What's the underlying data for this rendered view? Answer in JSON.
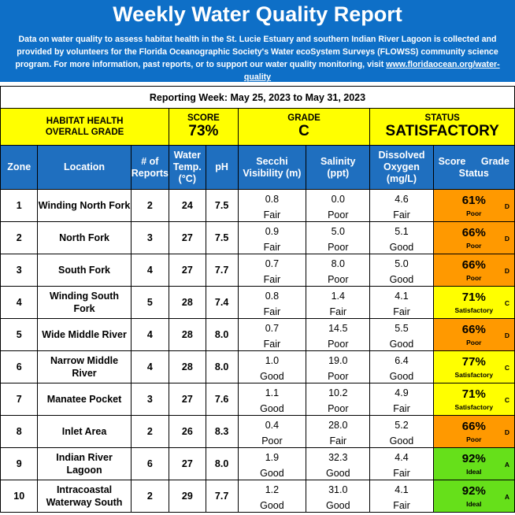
{
  "banner": {
    "title": "Weekly Water Quality Report",
    "description": "Data on water quality to assess habitat health in the St. Lucie Estuary and southern Indian River Lagoon is collected and provided by volunteers for the Florida Oceanographic Society's Water ecoSystem Surveys (FLOWSS) community science program.  For more information, past reports, or to support our water quality monitoring, visit ",
    "link_text": "www.floridaocean.org/water-quality",
    "link_end": ""
  },
  "reporting_week": "Reporting Week: May 25, 2023 to May 31, 2023",
  "summary": {
    "habitat_label_1": "HABITAT HEALTH",
    "habitat_label_2": "OVERALL GRADE",
    "score_label": "SCORE",
    "score_value": "73%",
    "grade_label": "GRADE",
    "grade_value": "C",
    "status_label": "STATUS",
    "status_value": "SATISFACTORY"
  },
  "columns": {
    "zone": "Zone",
    "location": "Location",
    "reports_1": "# of",
    "reports_2": "Reports",
    "temp_1": "Water",
    "temp_2": "Temp.",
    "temp_3": "(°C)",
    "ph": "pH",
    "secchi_1": "Secchi",
    "secchi_2": "Visibility (m)",
    "salinity_1": "Salinity",
    "salinity_2": "(ppt)",
    "do_1": "Dissolved",
    "do_2": "Oxygen",
    "do_3": "(mg/L)",
    "score": "Score",
    "grade": "Grade",
    "status": "Status"
  },
  "colors": {
    "banner": "#0e6fc7",
    "header": "#1f6fbf",
    "yellow": "#ffff00",
    "orange": "#ff9900",
    "green": "#66e01a"
  },
  "rows": [
    {
      "zone": "1",
      "location": "Winding North Fork",
      "reports": "2",
      "temp": "24",
      "ph": "7.5",
      "secchi": "0.8",
      "secchi_rating": "Fair",
      "salinity": "0.0",
      "salinity_rating": "Poor",
      "do": "4.6",
      "do_rating": "Fair",
      "score": "61%",
      "grade": "D",
      "status": "Poor",
      "color": "orange"
    },
    {
      "zone": "2",
      "location": "North Fork",
      "reports": "3",
      "temp": "27",
      "ph": "7.5",
      "secchi": "0.9",
      "secchi_rating": "Fair",
      "salinity": "5.0",
      "salinity_rating": "Poor",
      "do": "5.1",
      "do_rating": "Good",
      "score": "66%",
      "grade": "D",
      "status": "Poor",
      "color": "orange"
    },
    {
      "zone": "3",
      "location": "South Fork",
      "reports": "4",
      "temp": "27",
      "ph": "7.7",
      "secchi": "0.7",
      "secchi_rating": "Fair",
      "salinity": "8.0",
      "salinity_rating": "Poor",
      "do": "5.0",
      "do_rating": "Good",
      "score": "66%",
      "grade": "D",
      "status": "Poor",
      "color": "orange"
    },
    {
      "zone": "4",
      "location": "Winding South Fork",
      "reports": "5",
      "temp": "28",
      "ph": "7.4",
      "secchi": "0.8",
      "secchi_rating": "Fair",
      "salinity": "1.4",
      "salinity_rating": "Fair",
      "do": "4.1",
      "do_rating": "Fair",
      "score": "71%",
      "grade": "C",
      "status": "Satisfactory",
      "color": "yellow"
    },
    {
      "zone": "5",
      "location": "Wide Middle River",
      "reports": "4",
      "temp": "28",
      "ph": "8.0",
      "secchi": "0.7",
      "secchi_rating": "Fair",
      "salinity": "14.5",
      "salinity_rating": "Poor",
      "do": "5.5",
      "do_rating": "Good",
      "score": "66%",
      "grade": "D",
      "status": "Poor",
      "color": "orange"
    },
    {
      "zone": "6",
      "location": "Narrow Middle River",
      "reports": "4",
      "temp": "28",
      "ph": "8.0",
      "secchi": "1.0",
      "secchi_rating": "Good",
      "salinity": "19.0",
      "salinity_rating": "Poor",
      "do": "6.4",
      "do_rating": "Good",
      "score": "77%",
      "grade": "C",
      "status": "Satisfactory",
      "color": "yellow"
    },
    {
      "zone": "7",
      "location": "Manatee Pocket",
      "reports": "3",
      "temp": "27",
      "ph": "7.6",
      "secchi": "1.1",
      "secchi_rating": "Good",
      "salinity": "10.2",
      "salinity_rating": "Poor",
      "do": "4.9",
      "do_rating": "Fair",
      "score": "71%",
      "grade": "C",
      "status": "Satisfactory",
      "color": "yellow"
    },
    {
      "zone": "8",
      "location": "Inlet Area",
      "reports": "2",
      "temp": "26",
      "ph": "8.3",
      "secchi": "0.4",
      "secchi_rating": "Poor",
      "salinity": "28.0",
      "salinity_rating": "Fair",
      "do": "5.2",
      "do_rating": "Good",
      "score": "66%",
      "grade": "D",
      "status": "Poor",
      "color": "orange"
    },
    {
      "zone": "9",
      "location": "Indian River Lagoon",
      "reports": "6",
      "temp": "27",
      "ph": "8.0",
      "secchi": "1.9",
      "secchi_rating": "Good",
      "salinity": "32.3",
      "salinity_rating": "Good",
      "do": "4.4",
      "do_rating": "Fair",
      "score": "92%",
      "grade": "A",
      "status": "Ideal",
      "color": "green"
    },
    {
      "zone": "10",
      "location": "Intracoastal Waterway South",
      "reports": "2",
      "temp": "29",
      "ph": "7.7",
      "secchi": "1.2",
      "secchi_rating": "Good",
      "salinity": "31.0",
      "salinity_rating": "Good",
      "do": "4.1",
      "do_rating": "Fair",
      "score": "92%",
      "grade": "A",
      "status": "Ideal",
      "color": "green"
    }
  ]
}
